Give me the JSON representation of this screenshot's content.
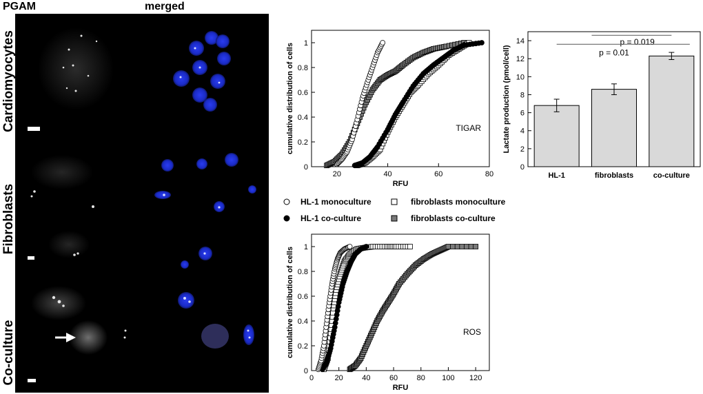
{
  "micrograph": {
    "column_headers": [
      "PGAM",
      "merged"
    ],
    "row_labels": [
      "Cardiomyocytes",
      "Fibroblasts",
      "Co-culture"
    ]
  },
  "legend": {
    "entries": [
      {
        "label": "HL-1 monoculture",
        "marker": "circle-open"
      },
      {
        "label": "fibroblasts monoculture",
        "marker": "square-open"
      },
      {
        "label": "HL-1 co-culture",
        "marker": "circle-filled"
      },
      {
        "label": "fibroblasts co-culture",
        "marker": "square-filled"
      }
    ]
  },
  "colors": {
    "nucleus": "#1a2bd6",
    "gray_fill": "#7a7a7a",
    "bar_fill": "#d9d9d9"
  },
  "chart_data": [
    {
      "type": "scatter",
      "title": "",
      "annotation": "TIGAR",
      "xlabel": "RFU",
      "ylabel": "cumulative distribution of cells",
      "xlim": [
        10,
        80
      ],
      "ylim": [
        0,
        1.1
      ],
      "xticks": [
        "20",
        "40",
        "60",
        "80"
      ],
      "yticks": [
        "0",
        "0.2",
        "0.4",
        "0.6",
        "0.8",
        "1"
      ],
      "series": [
        {
          "name": "HL-1 monoculture",
          "marker": "circle-open",
          "cdf": [
            [
              20,
              0.02
            ],
            [
              22,
              0.06
            ],
            [
              24,
              0.12
            ],
            [
              26,
              0.22
            ],
            [
              28,
              0.38
            ],
            [
              30,
              0.55
            ],
            [
              32,
              0.68
            ],
            [
              34,
              0.8
            ],
            [
              36,
              0.92
            ],
            [
              38,
              1.0
            ]
          ]
        },
        {
          "name": "HL-1 co-culture",
          "marker": "circle-filled",
          "cdf": [
            [
              27,
              0.01
            ],
            [
              30,
              0.03
            ],
            [
              33,
              0.08
            ],
            [
              36,
              0.16
            ],
            [
              40,
              0.3
            ],
            [
              43,
              0.42
            ],
            [
              46,
              0.52
            ],
            [
              50,
              0.65
            ],
            [
              54,
              0.75
            ],
            [
              58,
              0.82
            ],
            [
              62,
              0.88
            ],
            [
              66,
              0.94
            ],
            [
              70,
              0.98
            ],
            [
              77,
              1.0
            ]
          ]
        },
        {
          "name": "fibroblasts monoculture",
          "marker": "square-open",
          "cdf": [
            [
              28,
              0.01
            ],
            [
              31,
              0.03
            ],
            [
              34,
              0.08
            ],
            [
              37,
              0.14
            ],
            [
              40,
              0.28
            ],
            [
              43,
              0.4
            ],
            [
              46,
              0.5
            ],
            [
              49,
              0.6
            ],
            [
              52,
              0.66
            ],
            [
              56,
              0.75
            ],
            [
              60,
              0.82
            ],
            [
              64,
              0.9
            ],
            [
              68,
              0.95
            ],
            [
              72,
              1.0
            ]
          ]
        },
        {
          "name": "fibroblasts co-culture",
          "marker": "square-filled",
          "cdf": [
            [
              16,
              0.01
            ],
            [
              19,
              0.04
            ],
            [
              22,
              0.1
            ],
            [
              25,
              0.2
            ],
            [
              28,
              0.35
            ],
            [
              31,
              0.5
            ],
            [
              34,
              0.62
            ],
            [
              37,
              0.7
            ],
            [
              40,
              0.74
            ],
            [
              43,
              0.77
            ],
            [
              46,
              0.82
            ],
            [
              50,
              0.88
            ],
            [
              54,
              0.92
            ],
            [
              58,
              0.95
            ],
            [
              63,
              0.97
            ],
            [
              70,
              1.0
            ]
          ]
        }
      ]
    },
    {
      "type": "scatter",
      "title": "",
      "annotation": "ROS",
      "xlabel": "RFU",
      "ylabel": "cumulative distribution of cells",
      "xlim": [
        0,
        130
      ],
      "ylim": [
        0,
        1.1
      ],
      "xticks": [
        "0",
        "20",
        "40",
        "60",
        "80",
        "100",
        "120"
      ],
      "yticks": [
        "0",
        "0.2",
        "0.4",
        "0.6",
        "0.8",
        "1"
      ],
      "series": [
        {
          "name": "HL-1 monoculture",
          "marker": "circle-open",
          "cdf": [
            [
              5,
              0.01
            ],
            [
              7,
              0.08
            ],
            [
              9,
              0.2
            ],
            [
              11,
              0.38
            ],
            [
              13,
              0.55
            ],
            [
              15,
              0.7
            ],
            [
              17,
              0.82
            ],
            [
              19,
              0.9
            ],
            [
              21,
              0.95
            ],
            [
              24,
              0.98
            ],
            [
              28,
              1.0
            ]
          ]
        },
        {
          "name": "HL-1 co-culture",
          "marker": "circle-filled",
          "cdf": [
            [
              8,
              0.01
            ],
            [
              11,
              0.06
            ],
            [
              14,
              0.18
            ],
            [
              17,
              0.35
            ],
            [
              20,
              0.55
            ],
            [
              23,
              0.7
            ],
            [
              26,
              0.8
            ],
            [
              29,
              0.88
            ],
            [
              32,
              0.94
            ],
            [
              36,
              0.98
            ],
            [
              40,
              1.0
            ]
          ]
        },
        {
          "name": "fibroblasts monoculture",
          "marker": "square-open",
          "cdf": [
            [
              9,
              0.01
            ],
            [
              12,
              0.1
            ],
            [
              14,
              0.3
            ],
            [
              16,
              0.5
            ],
            [
              18,
              0.65
            ],
            [
              21,
              0.78
            ],
            [
              24,
              0.88
            ],
            [
              28,
              0.94
            ],
            [
              33,
              0.98
            ],
            [
              38,
              0.99
            ],
            [
              45,
              1.0
            ],
            [
              55,
              1.0
            ],
            [
              62,
              1.0
            ],
            [
              72,
              1.0
            ]
          ]
        },
        {
          "name": "fibroblasts co-culture",
          "marker": "square-filled",
          "cdf": [
            [
              28,
              0.01
            ],
            [
              32,
              0.04
            ],
            [
              36,
              0.1
            ],
            [
              40,
              0.2
            ],
            [
              44,
              0.3
            ],
            [
              48,
              0.4
            ],
            [
              52,
              0.48
            ],
            [
              56,
              0.55
            ],
            [
              60,
              0.62
            ],
            [
              64,
              0.7
            ],
            [
              70,
              0.78
            ],
            [
              76,
              0.85
            ],
            [
              82,
              0.9
            ],
            [
              88,
              0.94
            ],
            [
              94,
              0.97
            ],
            [
              100,
              1.0
            ],
            [
              120,
              1.0
            ]
          ]
        }
      ]
    },
    {
      "type": "bar",
      "title": "",
      "ylabel": "Lactate production (pmol/cell)",
      "xlabel": "",
      "categories": [
        "HL-1",
        "fibroblasts",
        "co-culture"
      ],
      "values": [
        6.8,
        8.6,
        12.3
      ],
      "errors": [
        0.7,
        0.6,
        0.4
      ],
      "ylim": [
        0,
        15
      ],
      "yticks": [
        "0",
        "2",
        "4",
        "6",
        "8",
        "10",
        "12",
        "14"
      ],
      "significance": [
        {
          "label": "p = 0.019",
          "from": 1,
          "to": 2
        },
        {
          "label": "p = 0.01",
          "from": 0,
          "to": 2
        }
      ]
    }
  ]
}
